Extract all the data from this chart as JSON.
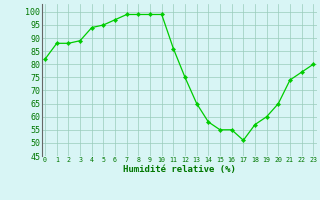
{
  "x": [
    0,
    1,
    2,
    3,
    4,
    5,
    6,
    7,
    8,
    9,
    10,
    11,
    12,
    13,
    14,
    15,
    16,
    17,
    18,
    19,
    20,
    21,
    22,
    23
  ],
  "y": [
    82,
    88,
    88,
    89,
    94,
    95,
    97,
    99,
    99,
    99,
    99,
    86,
    75,
    65,
    58,
    55,
    55,
    51,
    57,
    60,
    65,
    74,
    77,
    80
  ],
  "line_color": "#00cc00",
  "marker_color": "#00cc00",
  "bg_color": "#d8f5f5",
  "grid_color": "#99ccbb",
  "xlabel": "Humidité relative (%)",
  "xlabel_color": "#007700",
  "ylim": [
    45,
    103
  ],
  "xlim": [
    -0.3,
    23.3
  ],
  "yticks": [
    45,
    50,
    55,
    60,
    65,
    70,
    75,
    80,
    85,
    90,
    95,
    100
  ],
  "xticks": [
    0,
    1,
    2,
    3,
    4,
    5,
    6,
    7,
    8,
    9,
    10,
    11,
    12,
    13,
    14,
    15,
    16,
    17,
    18,
    19,
    20,
    21,
    22,
    23
  ],
  "tick_label_color": "#007700",
  "figsize": [
    3.2,
    2.0
  ],
  "dpi": 100
}
